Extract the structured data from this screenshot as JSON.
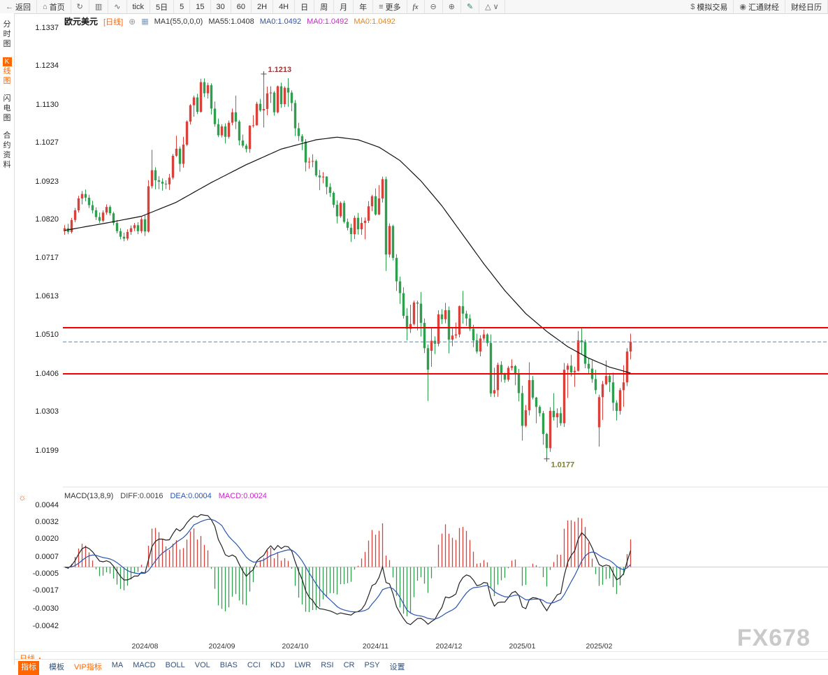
{
  "toolbar": {
    "back_label": "返回",
    "home_label": "首页",
    "tick_label": "tick",
    "five_day_label": "5日",
    "periods": [
      "5",
      "15",
      "30",
      "60",
      "2H",
      "4H",
      "日",
      "周",
      "月",
      "年"
    ],
    "more_label": "更多",
    "fx_label": "fx",
    "sim_label": "模拟交易",
    "huitong_label": "汇通财经",
    "calendar_label": "财经日历"
  },
  "icons": {
    "back": "←",
    "home": "⌂",
    "refresh": "↻",
    "kline": "▥",
    "line_chart": "∿",
    "more": "≡",
    "zoom_out": "⊖",
    "zoom_in": "⊕",
    "pencil": "✎",
    "triangle": "△",
    "chevron_down": "∨",
    "dollar": "$",
    "logo": "◉",
    "add": "⊕",
    "sun": "☼",
    "up_triangle": "▲",
    "ma_settings": "▦"
  },
  "sidebar": {
    "items": [
      "分时图",
      "K线图",
      "闪电图",
      "合约资料"
    ],
    "active": "K线图"
  },
  "chart_header": {
    "symbol": "欧元美元",
    "period_tag": "[日线]",
    "ma_settings": "MA1(55,0,0,0)",
    "ma55": "MA55:1.0408",
    "ma0_blue": "MA0:1.0492",
    "ma0_magenta": "MA0:1.0492",
    "ma0_orange": "MA0:1.0492"
  },
  "macd_header": {
    "title": "MACD(13,8,9)",
    "diff": "DIFF:0.0016",
    "dea": "DEA:0.0004",
    "macd": "MACD:0.0024"
  },
  "bottom": {
    "period": "日线",
    "tabs": [
      "指标",
      "模板",
      "VIP指标",
      "MA",
      "MACD",
      "BOLL",
      "VOL",
      "BIAS",
      "CCI",
      "KDJ",
      "LWR",
      "RSI",
      "CR",
      "PSY",
      "设置"
    ]
  },
  "watermark": "FX678",
  "chart_data": {
    "type": "candlestick",
    "title": "欧元美元 日线 (EUR/USD Daily)",
    "period": "daily",
    "y_axis": [
      "1.1337",
      "1.1234",
      "1.1130",
      "1.1027",
      "1.0923",
      "1.0820",
      "1.0717",
      "1.0613",
      "1.0510",
      "1.0406",
      "1.0303",
      "1.0199"
    ],
    "x_axis": [
      {
        "label": "2024/08",
        "index": 23
      },
      {
        "label": "2024/09",
        "index": 45
      },
      {
        "label": "2024/10",
        "index": 66
      },
      {
        "label": "2024/11",
        "index": 89
      },
      {
        "label": "2024/12",
        "index": 110
      },
      {
        "label": "2025/01",
        "index": 131
      },
      {
        "label": "2025/02",
        "index": 153
      }
    ],
    "hlines": [
      {
        "value": 1.053,
        "color": "#f20000"
      },
      {
        "value": 1.0406,
        "color": "#f20000"
      }
    ],
    "price_line": {
      "value": 1.0492,
      "color": "#3e8ede",
      "style": "dashed"
    },
    "annotations": [
      {
        "text": "1.1213",
        "i": 57,
        "value": 1.1213,
        "side": "high",
        "color": "#a03636"
      },
      {
        "text": "1.0177",
        "i": 138,
        "value": 1.0177,
        "side": "low",
        "color": "#7d7d2a"
      }
    ],
    "candle_fields": [
      "open",
      "high",
      "low",
      "close"
    ],
    "candles": [
      [
        1.079,
        1.0806,
        1.078,
        1.0798
      ],
      [
        1.0798,
        1.081,
        1.0782,
        1.0788
      ],
      [
        1.0788,
        1.0826,
        1.0784,
        1.082
      ],
      [
        1.082,
        1.0852,
        1.0814,
        1.0846
      ],
      [
        1.0846,
        1.0885,
        1.084,
        1.0878
      ],
      [
        1.0878,
        1.0898,
        1.0862,
        1.089
      ],
      [
        1.089,
        1.0902,
        1.087,
        1.088
      ],
      [
        1.088,
        1.0888,
        1.0852,
        1.086
      ],
      [
        1.086,
        1.0872,
        1.0838,
        1.0846
      ],
      [
        1.0846,
        1.0854,
        1.082,
        1.0828
      ],
      [
        1.0828,
        1.084,
        1.0812,
        1.0818
      ],
      [
        1.0818,
        1.0846,
        1.0814,
        1.084
      ],
      [
        1.084,
        1.0862,
        1.0834,
        1.0855
      ],
      [
        1.0855,
        1.086,
        1.0832,
        1.0838
      ],
      [
        1.0838,
        1.0842,
        1.0806,
        1.0812
      ],
      [
        1.0812,
        1.082,
        1.0784,
        1.079
      ],
      [
        1.079,
        1.0798,
        1.0768,
        1.0775
      ],
      [
        1.0775,
        1.0786,
        1.0763,
        1.077
      ],
      [
        1.077,
        1.0795,
        1.0765,
        1.0788
      ],
      [
        1.0788,
        1.0805,
        1.078,
        1.0798
      ],
      [
        1.0798,
        1.0812,
        1.079,
        1.0806
      ],
      [
        1.0806,
        1.0814,
        1.0782,
        1.079
      ],
      [
        1.079,
        1.0828,
        1.0785,
        1.0822
      ],
      [
        1.0822,
        1.0833,
        1.0777,
        1.0789
      ],
      [
        1.0789,
        1.0927,
        1.0786,
        1.0911
      ],
      [
        1.0911,
        1.1009,
        1.0905,
        1.0954
      ],
      [
        1.0954,
        1.0962,
        1.0903,
        1.0927
      ],
      [
        1.0927,
        1.0938,
        1.0903,
        1.0923
      ],
      [
        1.0923,
        1.0932,
        1.0899,
        1.0918
      ],
      [
        1.0918,
        1.0927,
        1.0903,
        1.0916
      ],
      [
        1.0916,
        1.0944,
        1.0901,
        1.0934
      ],
      [
        1.0934,
        1.0998,
        1.0929,
        1.0993
      ],
      [
        1.0993,
        1.1047,
        1.099,
        1.1012
      ],
      [
        1.1012,
        1.1018,
        1.095,
        1.0971
      ],
      [
        1.0971,
        1.1044,
        1.0961,
        1.1023
      ],
      [
        1.1023,
        1.1088,
        1.1019,
        1.1085
      ],
      [
        1.1085,
        1.1132,
        1.1077,
        1.1129
      ],
      [
        1.1129,
        1.1155,
        1.1098,
        1.115
      ],
      [
        1.115,
        1.116,
        1.1105,
        1.1111
      ],
      [
        1.1111,
        1.12,
        1.1109,
        1.1191
      ],
      [
        1.1191,
        1.1201,
        1.1151,
        1.1161
      ],
      [
        1.1161,
        1.119,
        1.1147,
        1.1183
      ],
      [
        1.1183,
        1.1188,
        1.1104,
        1.112
      ],
      [
        1.112,
        1.1139,
        1.1071,
        1.1078
      ],
      [
        1.1078,
        1.1093,
        1.1043,
        1.1048
      ],
      [
        1.1048,
        1.1078,
        1.1042,
        1.1072
      ],
      [
        1.1072,
        1.108,
        1.1026,
        1.1044
      ],
      [
        1.1044,
        1.1088,
        1.1039,
        1.1082
      ],
      [
        1.1082,
        1.112,
        1.1075,
        1.111
      ],
      [
        1.111,
        1.1155,
        1.1065,
        1.1085
      ],
      [
        1.1085,
        1.1089,
        1.1021,
        1.1034
      ],
      [
        1.1034,
        1.105,
        1.1015,
        1.102
      ],
      [
        1.102,
        1.1025,
        1.1002,
        1.1011
      ],
      [
        1.1011,
        1.1075,
        1.1001,
        1.1074
      ],
      [
        1.1074,
        1.1102,
        1.1069,
        1.1075
      ],
      [
        1.1075,
        1.1138,
        1.1074,
        1.1133
      ],
      [
        1.1133,
        1.1146,
        1.1111,
        1.1115
      ],
      [
        1.1115,
        1.1213,
        1.1069,
        1.1119
      ],
      [
        1.1119,
        1.1179,
        1.1102,
        1.1161
      ],
      [
        1.1161,
        1.118,
        1.1135,
        1.1163
      ],
      [
        1.1163,
        1.1167,
        1.1101,
        1.111
      ],
      [
        1.111,
        1.1182,
        1.1107,
        1.118
      ],
      [
        1.118,
        1.119,
        1.1122,
        1.1132
      ],
      [
        1.1132,
        1.118,
        1.1124,
        1.1176
      ],
      [
        1.1176,
        1.1202,
        1.1125,
        1.1163
      ],
      [
        1.1163,
        1.1169,
        1.1113,
        1.1135
      ],
      [
        1.1135,
        1.1143,
        1.1046,
        1.1067
      ],
      [
        1.1067,
        1.1082,
        1.1033,
        1.1046
      ],
      [
        1.1046,
        1.1051,
        1.1008,
        1.1031
      ],
      [
        1.1031,
        1.1038,
        1.0951,
        1.0975
      ],
      [
        1.0975,
        1.0988,
        1.0958,
        1.0977
      ],
      [
        1.0977,
        1.0997,
        1.0962,
        1.0979
      ],
      [
        1.0979,
        1.0983,
        1.0936,
        1.094
      ],
      [
        1.094,
        1.0955,
        1.09,
        1.0935
      ],
      [
        1.0935,
        1.0949,
        1.0919,
        1.0937
      ],
      [
        1.0937,
        1.0938,
        1.0889,
        1.0909
      ],
      [
        1.0909,
        1.0919,
        1.0882,
        1.0893
      ],
      [
        1.0893,
        1.0897,
        1.0853,
        1.0861
      ],
      [
        1.0861,
        1.0873,
        1.0811,
        1.083
      ],
      [
        1.083,
        1.087,
        1.0826,
        1.0866
      ],
      [
        1.0866,
        1.0872,
        1.0811,
        1.0815
      ],
      [
        1.0815,
        1.0824,
        1.0792,
        1.0799
      ],
      [
        1.0799,
        1.081,
        1.0761,
        1.0782
      ],
      [
        1.0782,
        1.0832,
        1.0769,
        1.0826
      ],
      [
        1.0826,
        1.0839,
        1.0781,
        1.0795
      ],
      [
        1.0795,
        1.0827,
        1.078,
        1.0812
      ],
      [
        1.0812,
        1.0827,
        1.0768,
        1.0818
      ],
      [
        1.0818,
        1.0871,
        1.0812,
        1.0857
      ],
      [
        1.0857,
        1.0888,
        1.0844,
        1.0884
      ],
      [
        1.0884,
        1.0905,
        1.0832,
        1.0835
      ],
      [
        1.0835,
        1.0914,
        1.0833,
        1.0878
      ],
      [
        1.0878,
        1.0937,
        1.0867,
        1.093
      ],
      [
        1.093,
        1.0937,
        1.0683,
        1.0727
      ],
      [
        1.0727,
        1.0811,
        1.0719,
        1.0804
      ],
      [
        1.0804,
        1.0807,
        1.0711,
        1.0718
      ],
      [
        1.0718,
        1.0728,
        1.0629,
        1.0655
      ],
      [
        1.0655,
        1.0668,
        1.0594,
        1.0623
      ],
      [
        1.0623,
        1.0639,
        1.0555,
        1.0562
      ],
      [
        1.0562,
        1.0583,
        1.0496,
        1.0527
      ],
      [
        1.0527,
        1.0592,
        1.0516,
        1.054
      ],
      [
        1.054,
        1.0603,
        1.0536,
        1.0598
      ],
      [
        1.0598,
        1.0603,
        1.0523,
        1.0595
      ],
      [
        1.0595,
        1.0626,
        1.0506,
        1.0543
      ],
      [
        1.0543,
        1.0555,
        1.0462,
        1.0475
      ],
      [
        1.0475,
        1.0485,
        1.0333,
        1.0417
      ],
      [
        1.0468,
        1.053,
        1.0425,
        1.0495
      ],
      [
        1.0495,
        1.0507,
        1.0459,
        1.0487
      ],
      [
        1.0487,
        1.0577,
        1.048,
        1.0566
      ],
      [
        1.0566,
        1.058,
        1.054,
        1.0553
      ],
      [
        1.0553,
        1.0597,
        1.0542,
        1.0577
      ],
      [
        1.0577,
        1.0587,
        1.0461,
        1.0498
      ],
      [
        1.0498,
        1.0528,
        1.048,
        1.0509
      ],
      [
        1.0509,
        1.0544,
        1.0501,
        1.0512
      ],
      [
        1.0512,
        1.059,
        1.0504,
        1.0588
      ],
      [
        1.0588,
        1.0629,
        1.0541,
        1.0568
      ],
      [
        1.0568,
        1.0576,
        1.0535,
        1.0555
      ],
      [
        1.0555,
        1.0566,
        1.0521,
        1.0527
      ],
      [
        1.0527,
        1.0538,
        1.0478,
        1.0496
      ],
      [
        1.0496,
        1.0514,
        1.0461,
        1.0466
      ],
      [
        1.0466,
        1.051,
        1.0453,
        1.0501
      ],
      [
        1.0501,
        1.0525,
        1.0495,
        1.0512
      ],
      [
        1.0512,
        1.0515,
        1.048,
        1.0489
      ],
      [
        1.0489,
        1.0512,
        1.0344,
        1.0353
      ],
      [
        1.0353,
        1.0422,
        1.0343,
        1.0362
      ],
      [
        1.0362,
        1.0436,
        1.0344,
        1.043
      ],
      [
        1.043,
        1.044,
        1.0384,
        1.0404
      ],
      [
        1.0404,
        1.0409,
        1.0382,
        1.039
      ],
      [
        1.039,
        1.0427,
        1.0385,
        1.0422
      ],
      [
        1.0422,
        1.0445,
        1.0415,
        1.0427
      ],
      [
        1.0427,
        1.043,
        1.0375,
        1.0406
      ],
      [
        1.0406,
        1.0419,
        1.0332,
        1.0354
      ],
      [
        1.0354,
        1.0374,
        1.0226,
        1.0266
      ],
      [
        1.0266,
        1.0322,
        1.0262,
        1.0308
      ],
      [
        1.0308,
        1.0437,
        1.0294,
        1.0389
      ],
      [
        1.0389,
        1.04,
        1.0337,
        1.0342
      ],
      [
        1.0342,
        1.0344,
        1.0273,
        1.0317
      ],
      [
        1.0317,
        1.0321,
        1.0291,
        1.03
      ],
      [
        1.03,
        1.0306,
        1.0215,
        1.0244
      ],
      [
        1.0244,
        1.0247,
        1.0177,
        1.0206
      ],
      [
        1.0206,
        1.0316,
        1.0196,
        1.0306
      ],
      [
        1.0306,
        1.0354,
        1.028,
        1.0289
      ],
      [
        1.0289,
        1.0313,
        1.0261,
        1.03
      ],
      [
        1.03,
        1.0316,
        1.0266,
        1.0273
      ],
      [
        1.0273,
        1.0435,
        1.0263,
        1.0417
      ],
      [
        1.0417,
        1.0434,
        1.0341,
        1.0428
      ],
      [
        1.0428,
        1.0457,
        1.0399,
        1.041
      ],
      [
        1.041,
        1.0425,
        1.0371,
        1.0414
      ],
      [
        1.0414,
        1.0521,
        1.0412,
        1.0496
      ],
      [
        1.0496,
        1.0532,
        1.0459,
        1.0491
      ],
      [
        1.0491,
        1.0498,
        1.0421,
        1.0433
      ],
      [
        1.0433,
        1.0448,
        1.0406,
        1.042
      ],
      [
        1.042,
        1.0442,
        1.0382,
        1.0392
      ],
      [
        1.0392,
        1.0417,
        1.0352,
        1.0362
      ],
      [
        1.0262,
        1.035,
        1.021,
        1.0343
      ],
      [
        1.0343,
        1.0387,
        1.0282,
        1.0378
      ],
      [
        1.0378,
        1.0442,
        1.0375,
        1.04
      ],
      [
        1.04,
        1.0405,
        1.0357,
        1.0383
      ],
      [
        1.0383,
        1.0409,
        1.0306,
        1.0328
      ],
      [
        1.0328,
        1.0335,
        1.028,
        1.0306
      ],
      [
        1.0306,
        1.0368,
        1.0296,
        1.0362
      ],
      [
        1.0362,
        1.0429,
        1.0317,
        1.0383
      ],
      [
        1.0383,
        1.0475,
        1.0373,
        1.0466
      ],
      [
        1.0466,
        1.0514,
        1.0445,
        1.0492
      ]
    ],
    "ma55_points": [
      [
        0,
        1.0792
      ],
      [
        12,
        1.0812
      ],
      [
        22,
        1.083
      ],
      [
        32,
        1.0868
      ],
      [
        42,
        1.0921
      ],
      [
        52,
        1.0969
      ],
      [
        62,
        1.1011
      ],
      [
        72,
        1.1036
      ],
      [
        78,
        1.1043
      ],
      [
        84,
        1.1036
      ],
      [
        90,
        1.1016
      ],
      [
        96,
        1.098
      ],
      [
        102,
        1.0925
      ],
      [
        108,
        1.0858
      ],
      [
        114,
        1.078
      ],
      [
        120,
        1.0702
      ],
      [
        126,
        1.063
      ],
      [
        132,
        1.0568
      ],
      [
        138,
        1.052
      ],
      [
        144,
        1.0479
      ],
      [
        150,
        1.0448
      ],
      [
        156,
        1.0424
      ],
      [
        162,
        1.0408
      ]
    ],
    "macd": {
      "params": [
        13,
        8,
        9
      ],
      "y_axis": [
        "0.0044",
        "0.0032",
        "0.0020",
        "0.0007",
        "-0.0005",
        "-0.0017",
        "-0.0030",
        "-0.0042"
      ],
      "diff_last": 0.0016,
      "dea_last": 0.0004,
      "macd_last": 0.0024
    },
    "colors": {
      "up": "#d8423a",
      "down": "#2f9e4f",
      "ma": "#111111",
      "diff": "#222222",
      "dea": "#2b55b0",
      "grid_zero": "#cccccc",
      "separator": "#e2e2e2"
    }
  }
}
